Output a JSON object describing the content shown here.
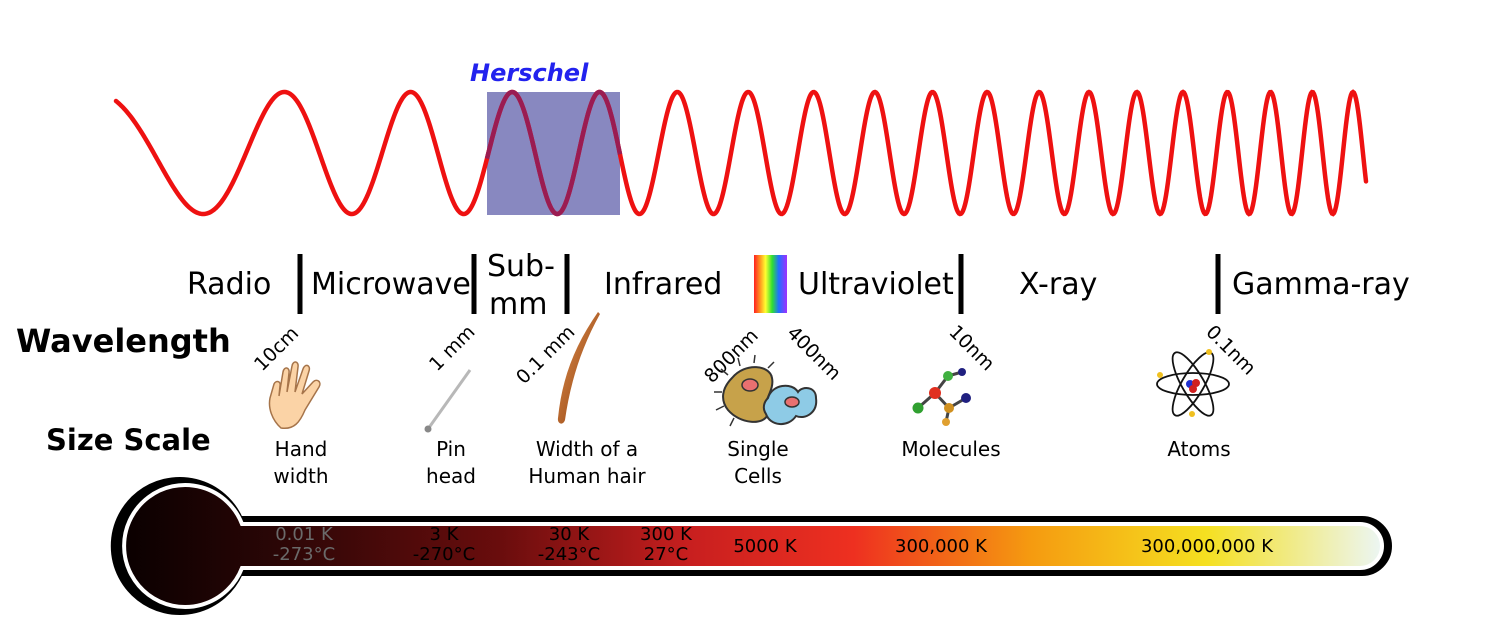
{
  "herschel_label": "Herschel",
  "bands": [
    "Radio",
    "Microwave",
    "Sub-",
    "mm",
    "Infrared",
    "Ultraviolet",
    "X-ray",
    "Gamma-ray"
  ],
  "row_labels": {
    "wavelength": "Wavelength",
    "size_scale": "Size Scale"
  },
  "wavelengths": [
    "10cm",
    "1 mm",
    "0.1 mm",
    "800nm",
    "400nm",
    "10nm",
    "0.1nm"
  ],
  "size_items": [
    {
      "line1": "Hand",
      "line2": "width",
      "icon": "hand-icon"
    },
    {
      "line1": "Pin",
      "line2": "head",
      "icon": "pin-icon"
    },
    {
      "line1": "Width of a",
      "line2": "Human hair",
      "icon": "hair-icon"
    },
    {
      "line1": "Single",
      "line2": "Cells",
      "icon": "cells-icon"
    },
    {
      "line1": "Molecules",
      "line2": "",
      "icon": "molecule-icon"
    },
    {
      "line1": "Atoms",
      "line2": "",
      "icon": "atom-icon"
    }
  ],
  "temperatures": [
    {
      "k": "0.01 K",
      "c": "-273°C"
    },
    {
      "k": "3 K",
      "c": "-270°C"
    },
    {
      "k": "30 K",
      "c": "-243°C"
    },
    {
      "k": "300 K",
      "c": "27°C"
    },
    {
      "k": "5000 K",
      "c": ""
    },
    {
      "k": "300,000 K",
      "c": ""
    },
    {
      "k": "300,000,000 K",
      "c": ""
    }
  ],
  "colors": {
    "wave": "#ee1111",
    "herschel_box": "#8888c0",
    "herschel_text": "#2222ee",
    "text": "#000000"
  }
}
